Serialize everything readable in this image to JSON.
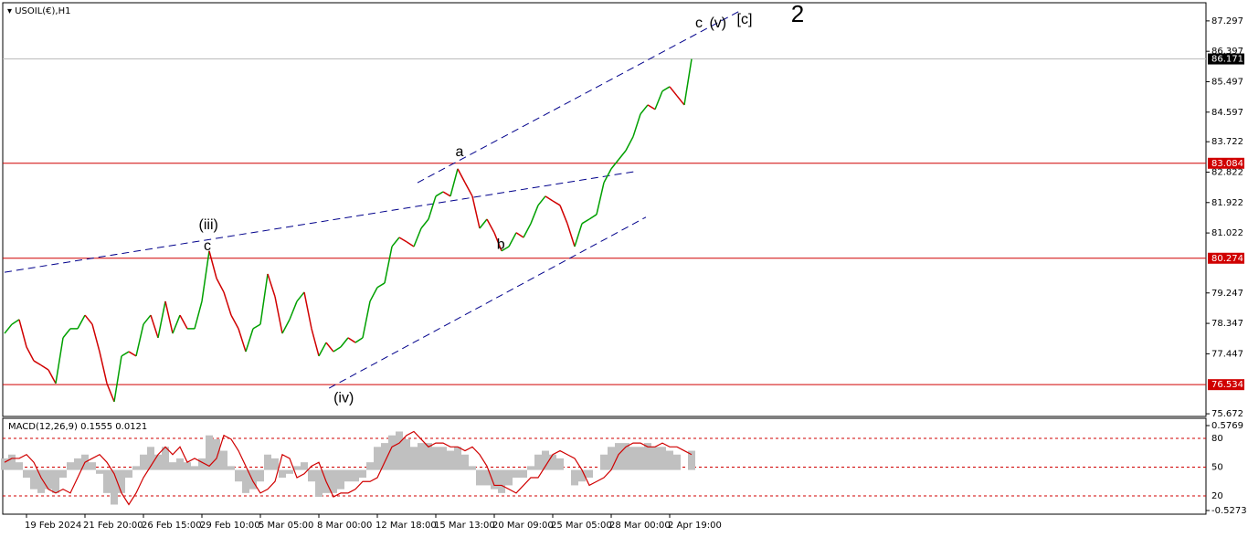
{
  "chart_data": [
    {
      "type": "line",
      "title": "USOIL(€),H1",
      "values": [
        78.05,
        78.32,
        78.46,
        77.65,
        77.24,
        77.11,
        76.97,
        76.57,
        77.92,
        78.19,
        78.19,
        78.59,
        78.32,
        77.51,
        76.57,
        76.03,
        77.38,
        77.51,
        77.38,
        78.32,
        78.59,
        77.92,
        79.0,
        78.05,
        78.59,
        78.19,
        78.19,
        79.0,
        80.49,
        79.68,
        79.27,
        78.59,
        78.19,
        77.51,
        78.19,
        78.32,
        79.81,
        79.14,
        78.05,
        78.46,
        79.0,
        79.27,
        78.19,
        77.38,
        77.78,
        77.51,
        77.65,
        77.92,
        77.78,
        77.92,
        79.0,
        79.41,
        79.54,
        80.62,
        80.89,
        80.76,
        80.62,
        81.16,
        81.43,
        82.11,
        82.24,
        82.11,
        82.92,
        82.51,
        82.11,
        81.16,
        81.43,
        81.03,
        80.49,
        80.62,
        81.03,
        80.89,
        81.3,
        81.84,
        82.11,
        81.97,
        81.84,
        81.3,
        80.62,
        81.3,
        81.43,
        81.57,
        82.51,
        82.92,
        83.19,
        83.46,
        83.87,
        84.54,
        84.81,
        84.68,
        85.22,
        85.35,
        85.08,
        84.81,
        86.17
      ],
      "up_color": "#00a000",
      "down_color": "#d00000",
      "ylim": [
        75.62,
        87.78
      ],
      "yticks": [
        75.672,
        77.447,
        78.347,
        79.247,
        81.022,
        81.922,
        82.822,
        83.722,
        84.597,
        85.497,
        86.397,
        87.297
      ],
      "xticks": [
        {
          "value": 3,
          "label": "19 Feb 2024"
        },
        {
          "value": 11,
          "label": "21 Feb 20:00"
        },
        {
          "value": 19,
          "label": "26 Feb 15:00"
        },
        {
          "value": 27,
          "label": "29 Feb 10:00"
        },
        {
          "value": 35,
          "label": "5 Mar 05:00"
        },
        {
          "value": 43,
          "label": "8 Mar 00:00"
        },
        {
          "value": 51,
          "label": "12 Mar 18:00"
        },
        {
          "value": 59,
          "label": "15 Mar 13:00"
        },
        {
          "value": 67,
          "label": "20 Mar 09:00"
        },
        {
          "value": 75,
          "label": "25 Mar 05:00"
        },
        {
          "value": 83,
          "label": "28 Mar 00:00"
        },
        {
          "value": 91,
          "label": "2 Apr 19:00"
        }
      ],
      "hlines": [
        {
          "value": 83.084,
          "label": "83.084",
          "color": "#d00000"
        },
        {
          "value": 80.274,
          "label": "80.274",
          "color": "#d00000"
        },
        {
          "value": 76.534,
          "label": "76.534",
          "color": "#d00000"
        },
        {
          "value": 86.171,
          "label": "86.171",
          "color": "#000000"
        }
      ],
      "trendlines": [
        {
          "x": [
            0,
            86.25
          ],
          "y": [
            79.86,
            82.84
          ],
          "color": "#00008b"
        },
        {
          "x": [
            44.4,
            87.75
          ],
          "y": [
            76.43,
            81.49
          ],
          "color": "#00008b"
        },
        {
          "x": [
            56.5,
            100.4
          ],
          "y": [
            82.51,
            87.57
          ],
          "color": "#00008b"
        }
      ],
      "annotations": [
        {
          "text": "c",
          "x": 95,
          "y": 87.22,
          "color": "#e000e0"
        },
        {
          "text": "(v)",
          "x": 97.6,
          "y": 87.22,
          "color": "#1a1acc"
        },
        {
          "text": "[c]",
          "x": 101.25,
          "y": 87.32,
          "color": "#2e8b2e"
        },
        {
          "text": "a",
          "x": 62.25,
          "y": 83.41,
          "color": "#e000e0"
        },
        {
          "text": "b",
          "x": 67.9,
          "y": 80.67,
          "color": "#e000e0"
        },
        {
          "text": "c",
          "x": 27.75,
          "y": 80.62,
          "color": "#e000e0"
        },
        {
          "text": "(iii)",
          "x": 27.9,
          "y": 81.24,
          "color": "#1a1acc"
        },
        {
          "text": "2",
          "x": 108.5,
          "y": 87.45,
          "color": "#1a1acc"
        },
        {
          "text": "(iv)",
          "x": 46.4,
          "y": 76.13,
          "color": "#1a1acc"
        }
      ]
    },
    {
      "type": "macd",
      "title": "MACD(12,26,9) 0.1555 0.0121",
      "series": [
        {
          "color": "#c0c0c0",
          "values": [
            0.15,
            0.2,
            0.1,
            -0.1,
            -0.25,
            -0.3,
            -0.25,
            -0.3,
            -0.1,
            0.1,
            0.15,
            0.2,
            0.1,
            -0.05,
            -0.3,
            -0.45,
            -0.3,
            -0.1,
            0.05,
            0.2,
            0.3,
            0.2,
            0.3,
            0.1,
            0.15,
            0.1,
            0.05,
            0.15,
            0.45,
            0.4,
            0.25,
            0.05,
            -0.15,
            -0.3,
            -0.25,
            -0.15,
            0.2,
            0.15,
            -0.1,
            -0.05,
            0.05,
            0.1,
            -0.15,
            -0.35,
            -0.3,
            -0.3,
            -0.25,
            -0.15,
            -0.15,
            -0.1,
            0.1,
            0.3,
            0.35,
            0.45,
            0.5,
            0.4,
            0.3,
            0.35,
            0.35,
            0.3,
            0.3,
            0.25,
            0.3,
            0.2,
            0.05,
            -0.2,
            -0.2,
            -0.25,
            -0.3,
            -0.2,
            -0.1,
            -0.1,
            0.05,
            0.2,
            0.25,
            0.2,
            0.15,
            0.0,
            -0.2,
            -0.15,
            -0.1,
            0.0,
            0.2,
            0.3,
            0.35,
            0.35,
            0.3,
            0.3,
            0.35,
            0.3,
            0.3,
            0.25,
            0.2,
            0.0,
            0.25
          ]
        },
        {
          "color": "#d00000",
          "values": [
            0.1,
            0.15,
            0.15,
            0.2,
            0.1,
            -0.1,
            -0.25,
            -0.3,
            -0.25,
            -0.3,
            -0.1,
            0.1,
            0.15,
            0.2,
            0.1,
            -0.05,
            -0.3,
            -0.45,
            -0.3,
            -0.1,
            0.05,
            0.2,
            0.3,
            0.2,
            0.3,
            0.1,
            0.15,
            0.1,
            0.05,
            0.15,
            0.45,
            0.4,
            0.25,
            0.05,
            -0.15,
            -0.3,
            -0.25,
            -0.15,
            0.2,
            0.15,
            -0.1,
            -0.05,
            0.05,
            0.1,
            -0.15,
            -0.35,
            -0.3,
            -0.3,
            -0.25,
            -0.15,
            -0.15,
            -0.1,
            0.1,
            0.3,
            0.35,
            0.45,
            0.5,
            0.4,
            0.3,
            0.35,
            0.35,
            0.3,
            0.3,
            0.25,
            0.3,
            0.2,
            0.05,
            -0.2,
            -0.2,
            -0.25,
            -0.3,
            -0.2,
            -0.1,
            -0.1,
            0.05,
            0.2,
            0.25,
            0.2,
            0.15,
            0.0,
            -0.2,
            -0.15,
            -0.1,
            0.0,
            0.2,
            0.3,
            0.35,
            0.35,
            0.3,
            0.3,
            0.35,
            0.3,
            0.3,
            0.25,
            0.2
          ]
        }
      ],
      "ylim": [
        -0.563,
        0.672
      ],
      "yticks": [
        -0.5273,
        0.5769
      ],
      "y2lim": [
        1.9,
        100.95
      ],
      "y2ticks": [
        20,
        50,
        80
      ],
      "level_color": "#d00000"
    }
  ]
}
